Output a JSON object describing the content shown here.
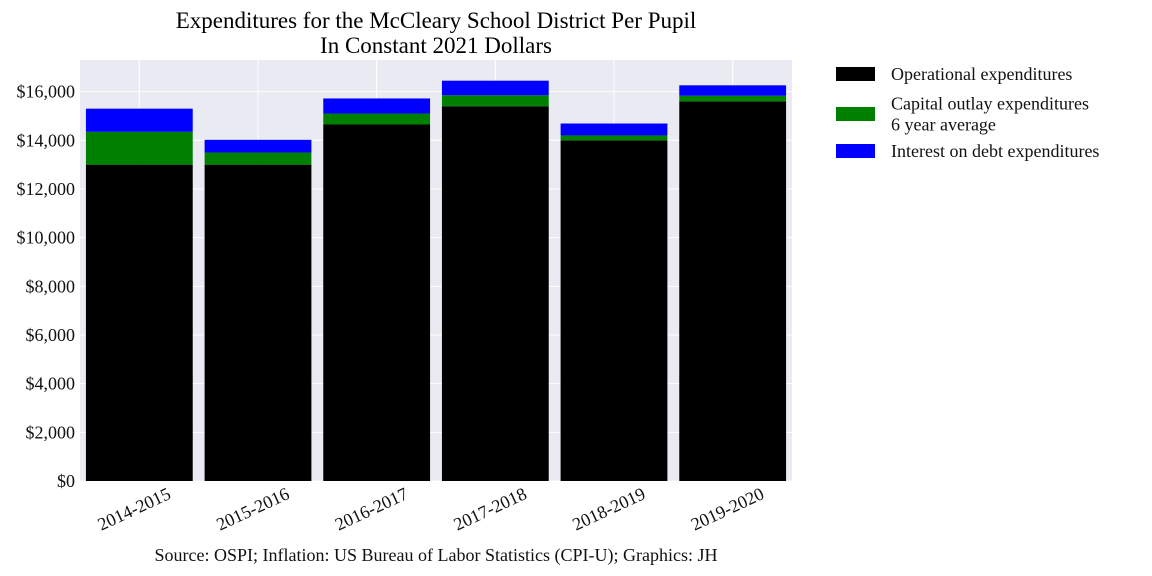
{
  "chart_data": {
    "type": "bar",
    "stacked": true,
    "title": [
      "Expenditures for the McCleary School District Per Pupil",
      "In Constant 2021 Dollars"
    ],
    "xlabel": "",
    "ylabel": "",
    "categories": [
      "2014-2015",
      "2015-2016",
      "2016-2017",
      "2017-2018",
      "2018-2019",
      "2019-2020"
    ],
    "series": [
      {
        "name": "Operational expenditures",
        "color": "#000000",
        "values": [
          13000,
          13000,
          14650,
          15400,
          14000,
          15600
        ]
      },
      {
        "name": "Capital outlay expenditures\n6 year average",
        "color": "#008000",
        "values": [
          1350,
          500,
          450,
          450,
          200,
          230
        ]
      },
      {
        "name": "Interest on debt expenditures",
        "color": "#0000ff",
        "values": [
          950,
          520,
          620,
          600,
          490,
          430
        ]
      }
    ],
    "ylim": [
      0,
      17300
    ],
    "yticks": [
      0,
      2000,
      4000,
      6000,
      8000,
      10000,
      12000,
      14000,
      16000
    ],
    "ytick_labels": [
      "$0",
      "$2,000",
      "$4,000",
      "$6,000",
      "$8,000",
      "$10,000",
      "$12,000",
      "$14,000",
      "$16,000"
    ],
    "grid": true,
    "legend_position": "outside-right",
    "source": "Source: OSPI; Inflation: US Bureau of Labor Statistics (CPI-U); Graphics: JH"
  },
  "colors": {
    "plot_background": "#eaeaf2",
    "grid": "#ffffff"
  }
}
